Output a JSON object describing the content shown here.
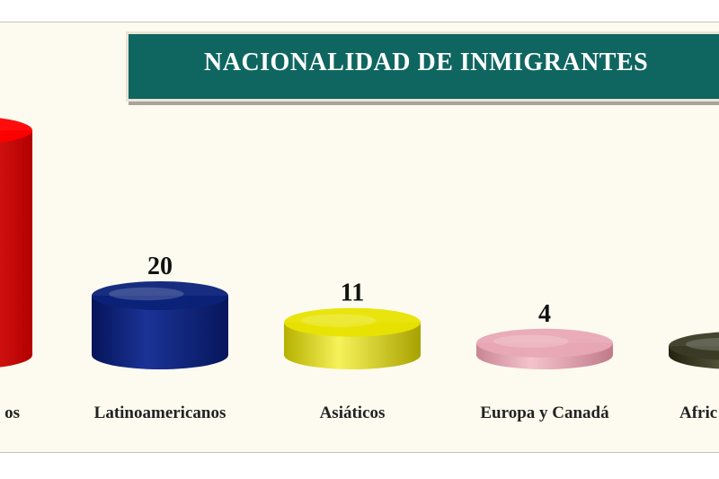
{
  "chart_data": {
    "type": "bar",
    "style": "3d-cylinder",
    "title": "NACIONALIDAD DE INMIGRANTES",
    "categories": [
      "Europeos",
      "Latinoamericanos",
      "Asiáticos",
      "Europa y Canadá",
      "Africanos"
    ],
    "category_labels_visible": [
      "os",
      "Latinoamericanos",
      "Asiáticos",
      "Europa y Canadá",
      "Afric"
    ],
    "values": [
      null,
      20,
      11,
      4,
      3
    ],
    "value_labels": [
      "",
      "20",
      "11",
      "4",
      ""
    ],
    "colors": [
      "#ff0000",
      "#0b2278",
      "#e8e300",
      "#e8a8b4",
      "#3a3a26"
    ],
    "grid": false,
    "legend": "none"
  }
}
